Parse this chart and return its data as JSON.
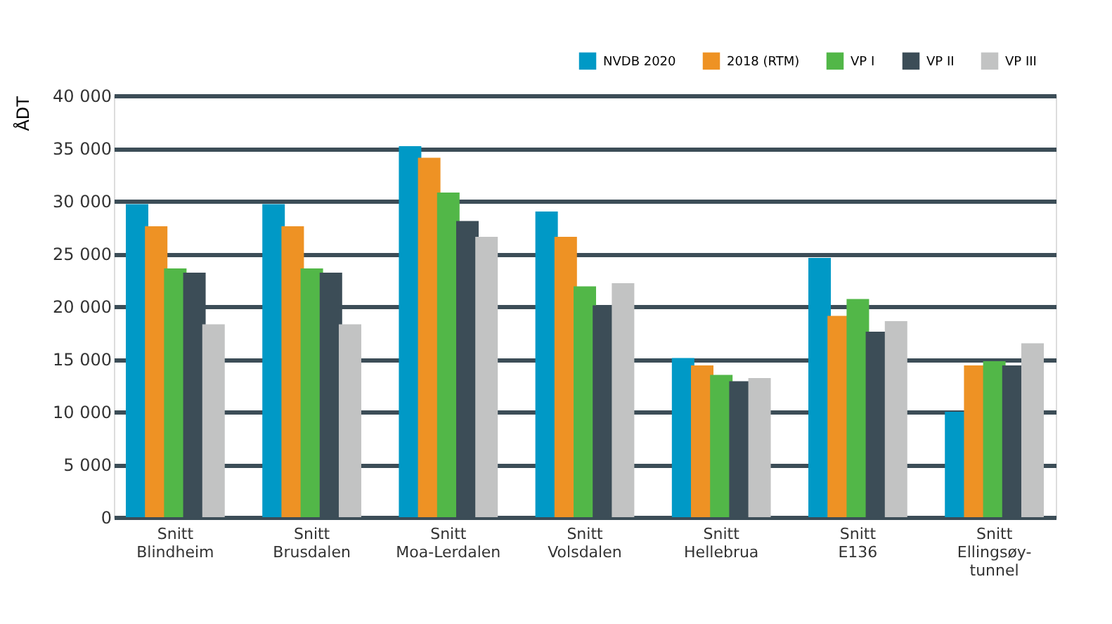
{
  "chart_data": {
    "type": "bar",
    "ylabel": "ÅDT",
    "categories": [
      "Snitt Blindheim",
      "Snitt Brusdalen",
      "Snitt Moa-Lerdalen",
      "Snitt Volsdalen",
      "Snitt Hellebrua",
      "Snitt E136",
      "Snitt Ellingsøy-tunnel"
    ],
    "series": [
      {
        "name": "NVDB 2020",
        "color": "#0099c6",
        "values": [
          29700,
          29700,
          35200,
          29000,
          15100,
          24600,
          10000
        ]
      },
      {
        "name": "2018 (RTM)",
        "color": "#ee9224",
        "values": [
          27600,
          27600,
          34100,
          26600,
          14400,
          19100,
          14400
        ]
      },
      {
        "name": "VP I",
        "color": "#52b748",
        "values": [
          23600,
          23600,
          30800,
          21900,
          13500,
          20700,
          14800
        ]
      },
      {
        "name": "VP II",
        "color": "#3c4d57",
        "values": [
          23200,
          23200,
          28100,
          20100,
          12900,
          17600,
          14400
        ]
      },
      {
        "name": "VP III",
        "color": "#c2c3c3",
        "values": [
          18300,
          18300,
          26600,
          22200,
          13200,
          18600,
          16500
        ]
      }
    ],
    "ylim": [
      0,
      40000
    ],
    "yticks": [
      {
        "value": 0,
        "label": "0"
      },
      {
        "value": 5000,
        "label": "5 000"
      },
      {
        "value": 10000,
        "label": "10 000"
      },
      {
        "value": 15000,
        "label": "15 000"
      },
      {
        "value": 20000,
        "label": "20 000"
      },
      {
        "value": 25000,
        "label": "25 000"
      },
      {
        "value": 30000,
        "label": "30 000"
      },
      {
        "value": 35000,
        "label": "35 000"
      },
      {
        "value": 40000,
        "label": "40 000"
      }
    ],
    "grid": "y",
    "legend": "top right"
  }
}
